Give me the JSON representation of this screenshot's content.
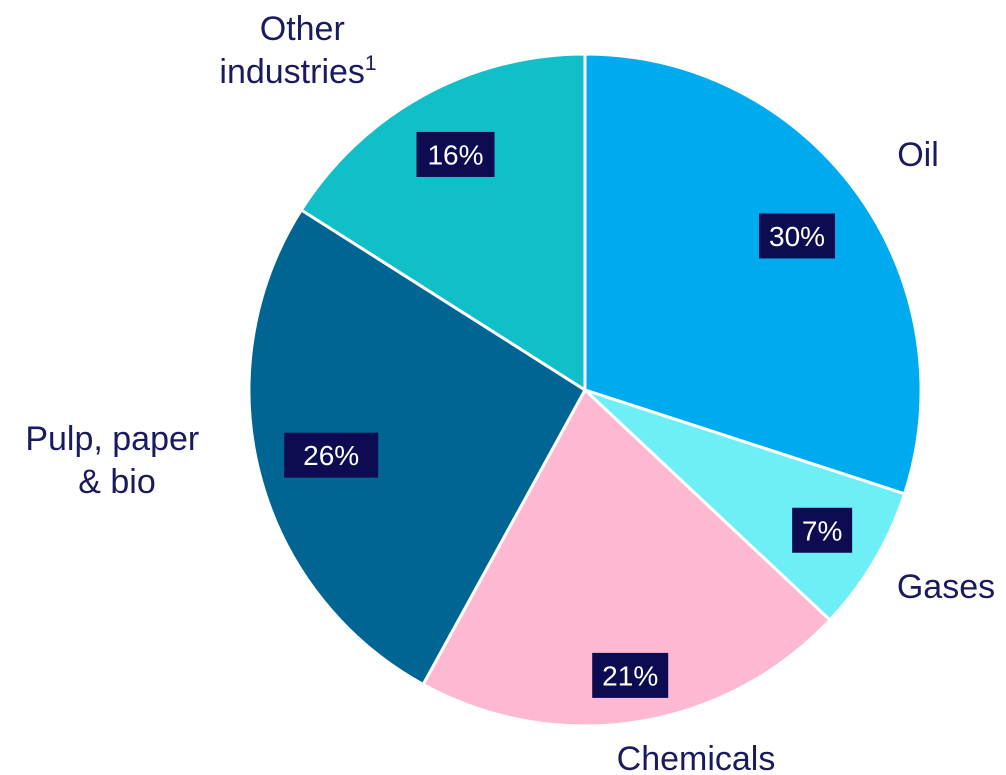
{
  "chart_data": {
    "type": "pie",
    "start_angle_deg": 0,
    "direction": "clockwise",
    "slices": [
      {
        "label": "Oil",
        "value": 30,
        "value_label": "30%",
        "color": "#00aaef"
      },
      {
        "label": "Gases",
        "value": 7,
        "value_label": "7%",
        "color": "#6eeef5"
      },
      {
        "label": "Chemicals",
        "value": 21,
        "value_label": "21%",
        "color": "#feb8d2"
      },
      {
        "label": "Pulp, paper & bio",
        "label_lines": [
          "Pulp, paper",
          "& bio"
        ],
        "value": 26,
        "value_label": "26%",
        "color": "#006592"
      },
      {
        "label": "Other industries",
        "label_lines": [
          "Other",
          "industries"
        ],
        "label_superscript": "1",
        "value": 16,
        "value_label": "16%",
        "color": "#10bfc8"
      }
    ]
  }
}
